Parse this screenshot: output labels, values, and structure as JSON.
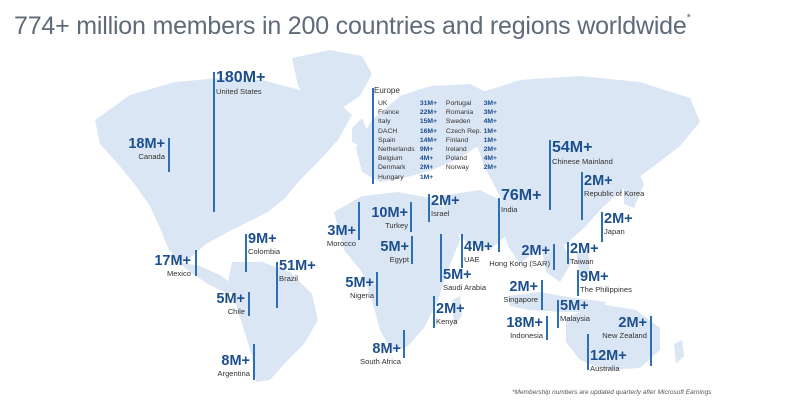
{
  "title": "774+ million members in 200 countries and regions worldwide",
  "title_mark": "*",
  "colors": {
    "land": "#dbe6f4",
    "accent": "#2d6fb7",
    "number": "#1c4f8e"
  },
  "europe": {
    "heading": "Europe",
    "rows": [
      {
        "c1": "UK",
        "v1": "31M+",
        "c2": "Portugal",
        "v2": "3M+"
      },
      {
        "c1": "France",
        "v1": "22M+",
        "c2": "Romania",
        "v2": "3M+"
      },
      {
        "c1": "Italy",
        "v1": "15M+",
        "c2": "Sweden",
        "v2": "4M+"
      },
      {
        "c1": "DACH",
        "v1": "16M+",
        "c2": "Czech Rep.",
        "v2": "1M+"
      },
      {
        "c1": "Spain",
        "v1": "14M+",
        "c2": "Finland",
        "v2": "1M+"
      },
      {
        "c1": "Netherlands",
        "v1": "9M+",
        "c2": "Ireland",
        "v2": "2M+"
      },
      {
        "c1": "Belgium",
        "v1": "4M+",
        "c2": "Poland",
        "v2": "4M+"
      },
      {
        "c1": "Denmark",
        "v1": "2M+",
        "c2": "Norway",
        "v2": "2M+"
      },
      {
        "c1": "Hungary",
        "v1": "1M+",
        "c2": "",
        "v2": ""
      }
    ]
  },
  "stats": {
    "us": {
      "value": "180M+",
      "label": "United States"
    },
    "canada": {
      "value": "18M+",
      "label": "Canada"
    },
    "mexico": {
      "value": "17M+",
      "label": "Mexico"
    },
    "colombia": {
      "value": "9M+",
      "label": "Colombia"
    },
    "brazil": {
      "value": "51M+",
      "label": "Brazil"
    },
    "chile": {
      "value": "5M+",
      "label": "Chile"
    },
    "argentina": {
      "value": "8M+",
      "label": "Argentina"
    },
    "morocco": {
      "value": "3M+",
      "label": "Morocco"
    },
    "turkey": {
      "value": "10M+",
      "label": "Turkey"
    },
    "israel": {
      "value": "2M+",
      "label": "Israel"
    },
    "egypt": {
      "value": "5M+",
      "label": "Egypt"
    },
    "nigeria": {
      "value": "5M+",
      "label": "Nigeria"
    },
    "south_africa": {
      "value": "8M+",
      "label": "South Africa"
    },
    "uae": {
      "value": "4M+",
      "label": "UAE"
    },
    "saudi": {
      "value": "5M+",
      "label": "Saudi Arabia"
    },
    "kenya": {
      "value": "2M+",
      "label": "Kenya"
    },
    "india": {
      "value": "76M+",
      "label": "India"
    },
    "china": {
      "value": "54M+",
      "label": "Chinese Mainland"
    },
    "korea": {
      "value": "2M+",
      "label": "Republic of Korea"
    },
    "japan": {
      "value": "2M+",
      "label": "Japan"
    },
    "hongkong": {
      "value": "2M+",
      "label": "Hong Kong (SAR)"
    },
    "taiwan": {
      "value": "2M+",
      "label": "Taiwan"
    },
    "philippines": {
      "value": "9M+",
      "label": "The Philippines"
    },
    "singapore": {
      "value": "2M+",
      "label": "Singapore"
    },
    "malaysia": {
      "value": "5M+",
      "label": "Malaysia"
    },
    "indonesia": {
      "value": "18M+",
      "label": "Indonesia"
    },
    "new_zealand": {
      "value": "2M+",
      "label": "New Zealand"
    },
    "australia": {
      "value": "12M+",
      "label": "Australia"
    }
  },
  "footnote": "*Membership numbers are updated quarterly after Microsoft Earnings"
}
